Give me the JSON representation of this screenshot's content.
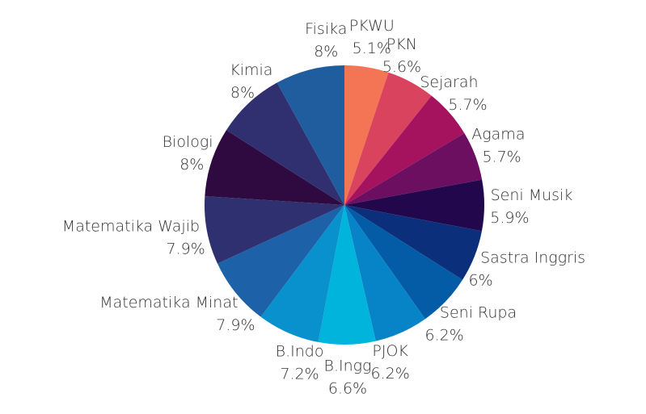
{
  "chart_data": {
    "type": "pie",
    "categories": [
      "PKWU",
      "PKN",
      "Sejarah",
      "Agama",
      "Seni Musik",
      "Sastra Inggris",
      "Seni Rupa",
      "PJOK",
      "B.Ingg",
      "B.Indo",
      "Matematika Minat",
      "Matematika Wajib",
      "Biologi",
      "Kimia",
      "Fisika"
    ],
    "values": [
      5.1,
      5.6,
      5.7,
      5.7,
      5.9,
      6,
      6.2,
      6.2,
      6.6,
      7.2,
      7.9,
      7.9,
      8,
      8,
      8
    ],
    "value_labels": [
      "5.1%",
      "5.6%",
      "5.7%",
      "5.7%",
      "5.9%",
      "6%",
      "6.2%",
      "6.2%",
      "6.6%",
      "7.2%",
      "7.9%",
      "7.9%",
      "8%",
      "8%",
      "8%"
    ],
    "colors": [
      "#f47555",
      "#d9435e",
      "#a5135f",
      "#6c0f61",
      "#23074d",
      "#0b2f7a",
      "#045ba6",
      "#0784c7",
      "#00b4dc",
      "#0891cc",
      "#1d62a8",
      "#2f3070",
      "#2e0a40",
      "#302f6f",
      "#1f5d9f"
    ]
  }
}
